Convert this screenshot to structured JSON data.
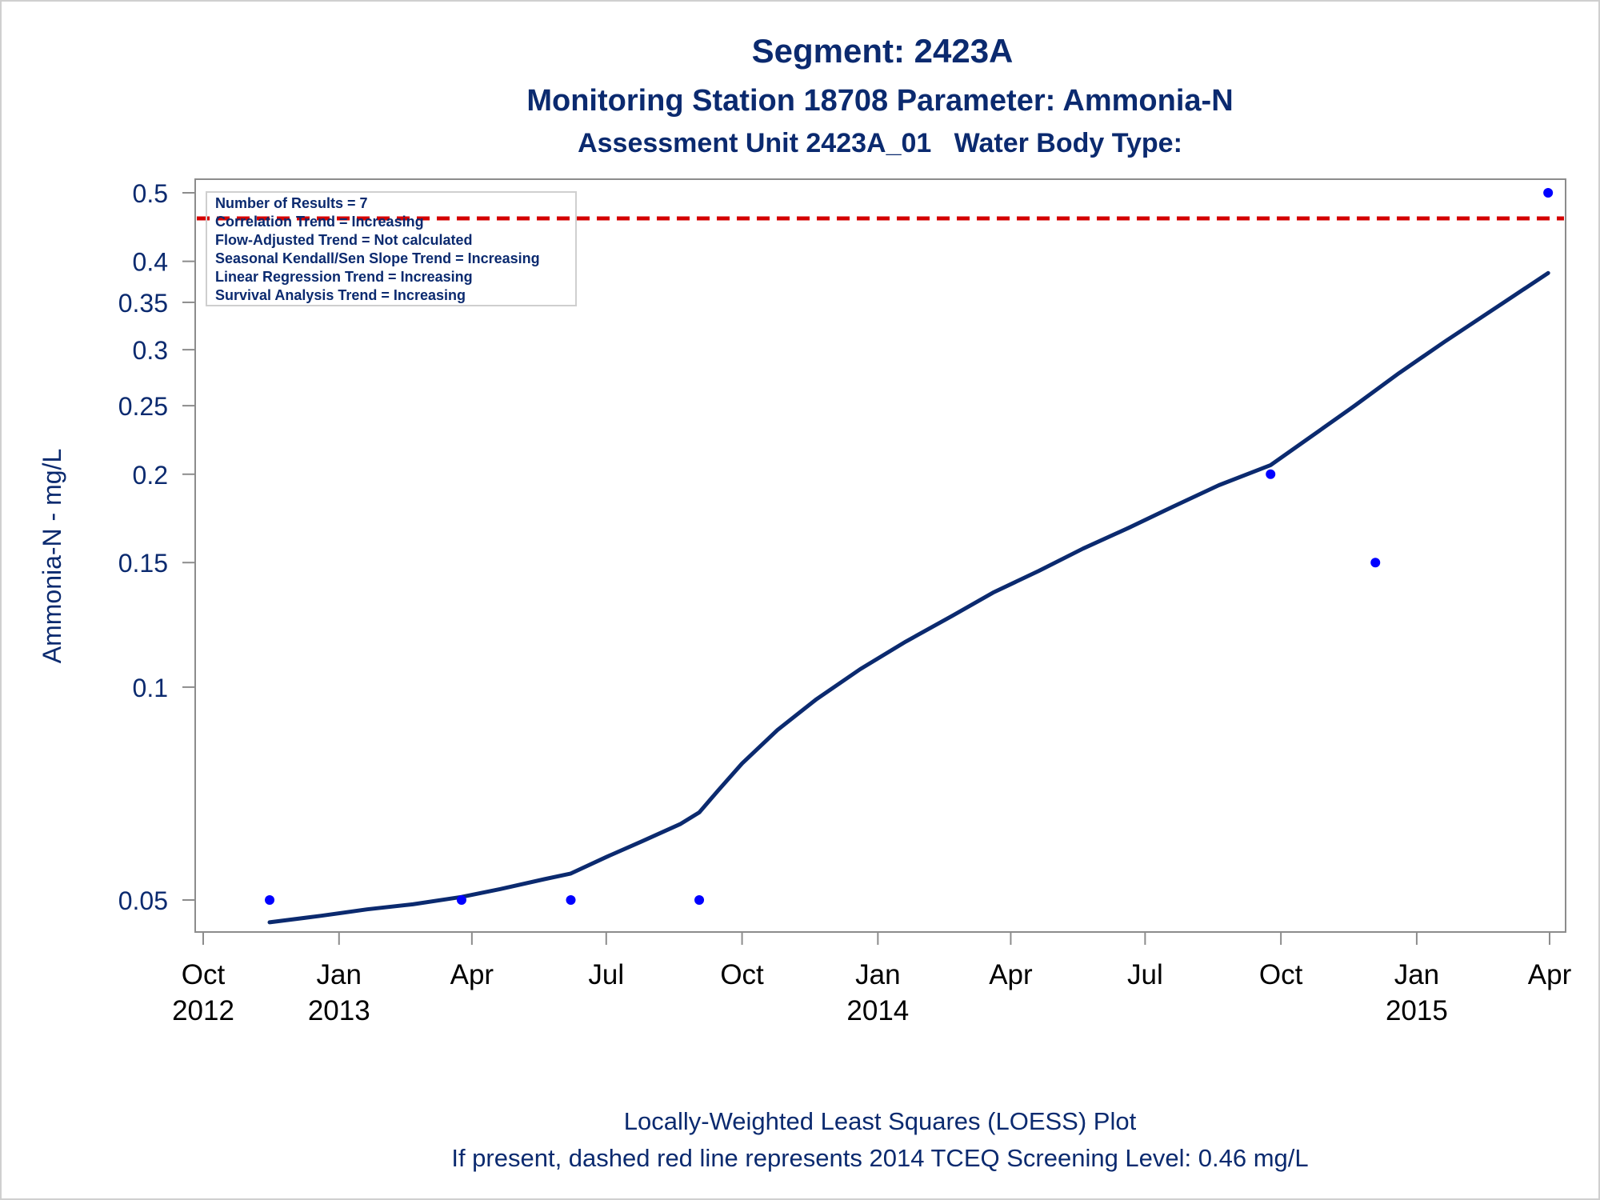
{
  "titles": {
    "line1": "Segment: 2423A",
    "line2": "Monitoring Station 18708 Parameter: Ammonia-N",
    "line3": "Assessment Unit 2423A_01   Water Body Type:"
  },
  "footnotes": {
    "line1": "Locally-Weighted Least Squares (LOESS) Plot",
    "line2": "If present, dashed red line represents 2014 TCEQ Screening Level: 0.46 mg/L"
  },
  "inset": [
    "Number of Results = 7",
    "Correlation Trend = Increasing",
    "Flow-Adjusted Trend = Not calculated",
    "Seasonal Kendall/Sen Slope Trend = Increasing",
    "Linear Regression Trend = Increasing",
    "Survival Analysis Trend = Increasing"
  ],
  "colors": {
    "text": "#0b2a6f",
    "loess_line": "#0b2a6f",
    "points": "#0000ff",
    "screening_line": "#d40000",
    "axis": "#8c8c8c"
  },
  "chart_data": {
    "type": "scatter",
    "ylabel": "Ammonia-N - mg/L",
    "xlabel": "",
    "y_scale": "log",
    "ylim": [
      0.046,
      0.52
    ],
    "xlim": [
      "2012-10-01",
      "2015-04-01"
    ],
    "y_ticks": [
      {
        "value": 0.05,
        "label": "0.05"
      },
      {
        "value": 0.1,
        "label": "0.1"
      },
      {
        "value": 0.15,
        "label": "0.15"
      },
      {
        "value": 0.2,
        "label": "0.2"
      },
      {
        "value": 0.25,
        "label": "0.25"
      },
      {
        "value": 0.3,
        "label": "0.3"
      },
      {
        "value": 0.35,
        "label": "0.35"
      },
      {
        "value": 0.4,
        "label": "0.4"
      },
      {
        "value": 0.5,
        "label": "0.5"
      }
    ],
    "x_ticks": [
      {
        "date": "2012-10-01",
        "label": "Oct",
        "year": "2012"
      },
      {
        "date": "2013-01-01",
        "label": "Jan",
        "year": "2013"
      },
      {
        "date": "2013-04-01",
        "label": "Apr",
        "year": ""
      },
      {
        "date": "2013-07-01",
        "label": "Jul",
        "year": ""
      },
      {
        "date": "2013-10-01",
        "label": "Oct",
        "year": ""
      },
      {
        "date": "2014-01-01",
        "label": "Jan",
        "year": "2014"
      },
      {
        "date": "2014-04-01",
        "label": "Apr",
        "year": ""
      },
      {
        "date": "2014-07-01",
        "label": "Jul",
        "year": ""
      },
      {
        "date": "2014-10-01",
        "label": "Oct",
        "year": ""
      },
      {
        "date": "2015-01-01",
        "label": "Jan",
        "year": "2015"
      },
      {
        "date": "2015-04-01",
        "label": "Apr",
        "year": ""
      }
    ],
    "observations": [
      {
        "x": "2012-11-15",
        "y": 0.05
      },
      {
        "x": "2013-03-25",
        "y": 0.05
      },
      {
        "x": "2013-06-07",
        "y": 0.05
      },
      {
        "x": "2013-09-02",
        "y": 0.05
      },
      {
        "x": "2014-09-24",
        "y": 0.2
      },
      {
        "x": "2014-12-04",
        "y": 0.15
      },
      {
        "x": "2015-03-31",
        "y": 0.5
      }
    ],
    "loess": [
      {
        "x": "2012-11-15",
        "y": 0.0465
      },
      {
        "x": "2012-12-20",
        "y": 0.0475
      },
      {
        "x": "2013-01-20",
        "y": 0.0485
      },
      {
        "x": "2013-02-20",
        "y": 0.0493
      },
      {
        "x": "2013-03-25",
        "y": 0.0505
      },
      {
        "x": "2013-04-20",
        "y": 0.0518
      },
      {
        "x": "2013-05-20",
        "y": 0.0535
      },
      {
        "x": "2013-06-07",
        "y": 0.0545
      },
      {
        "x": "2013-07-01",
        "y": 0.0575
      },
      {
        "x": "2013-07-25",
        "y": 0.0605
      },
      {
        "x": "2013-08-20",
        "y": 0.064
      },
      {
        "x": "2013-09-02",
        "y": 0.0665
      },
      {
        "x": "2013-09-15",
        "y": 0.0715
      },
      {
        "x": "2013-10-01",
        "y": 0.078
      },
      {
        "x": "2013-10-25",
        "y": 0.087
      },
      {
        "x": "2013-11-20",
        "y": 0.096
      },
      {
        "x": "2013-12-20",
        "y": 0.106
      },
      {
        "x": "2014-01-20",
        "y": 0.116
      },
      {
        "x": "2014-02-20",
        "y": 0.126
      },
      {
        "x": "2014-03-20",
        "y": 0.136
      },
      {
        "x": "2014-04-20",
        "y": 0.146
      },
      {
        "x": "2014-05-20",
        "y": 0.157
      },
      {
        "x": "2014-06-20",
        "y": 0.168
      },
      {
        "x": "2014-07-20",
        "y": 0.18
      },
      {
        "x": "2014-08-20",
        "y": 0.193
      },
      {
        "x": "2014-09-24",
        "y": 0.206
      },
      {
        "x": "2014-10-20",
        "y": 0.225
      },
      {
        "x": "2014-11-20",
        "y": 0.25
      },
      {
        "x": "2014-12-20",
        "y": 0.278
      },
      {
        "x": "2015-01-20",
        "y": 0.308
      },
      {
        "x": "2015-02-20",
        "y": 0.34
      },
      {
        "x": "2015-03-31",
        "y": 0.385
      }
    ],
    "screening_level": {
      "y": 0.46
    }
  }
}
